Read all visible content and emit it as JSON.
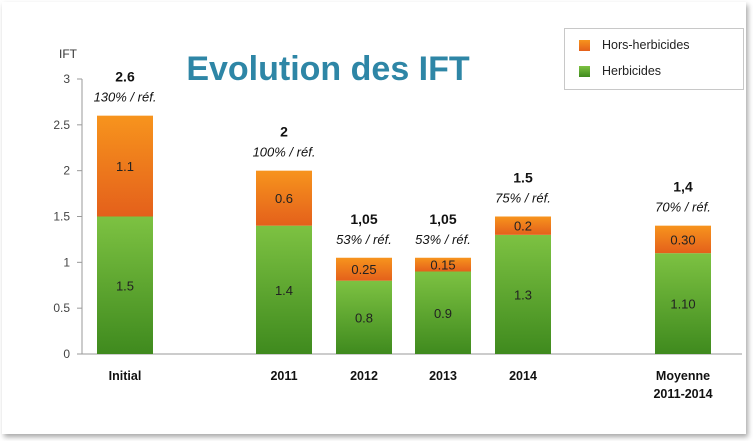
{
  "chart_data": {
    "type": "bar",
    "stacked": true,
    "title": "Evolution des IFT",
    "ylabel": "IFT",
    "ylim": [
      0,
      3
    ],
    "yticks": [
      "0",
      "0.5",
      "1",
      "1.5",
      "2",
      "2.5",
      "3"
    ],
    "grid": false,
    "legend_position": "top-right",
    "categories": [
      {
        "label": "Initial",
        "label2": ""
      },
      {
        "label": "2011",
        "label2": ""
      },
      {
        "label": "2012",
        "label2": ""
      },
      {
        "label": "2013",
        "label2": ""
      },
      {
        "label": "2014",
        "label2": ""
      },
      {
        "label": "Moyenne",
        "label2": "2011-2014"
      }
    ],
    "series": [
      {
        "name": "Herbicides",
        "color": "#7dc242",
        "color_dark": "#3f8a1e",
        "values": [
          1.5,
          1.4,
          0.8,
          0.9,
          1.3,
          1.1
        ],
        "value_labels": [
          "1.5",
          "1.4",
          "0.8",
          "0.9",
          "1.3",
          "1.10"
        ]
      },
      {
        "name": "Hors-herbicides",
        "color": "#f7941d",
        "color_dark": "#e4601b",
        "values": [
          1.1,
          0.6,
          0.25,
          0.15,
          0.2,
          0.3
        ],
        "value_labels": [
          "1.1",
          "0.6",
          "0.25",
          "0.15",
          "0.2",
          "0.30"
        ]
      }
    ],
    "totals": [
      "2.6",
      "2",
      "1,05",
      "1,05",
      "1.5",
      "1,4"
    ],
    "ratios": [
      "130% / réf.",
      "100% / réf.",
      "53% / réf.",
      "53% / réf.",
      "75% / réf.",
      "70% / réf."
    ],
    "title_color": "#2e86a6"
  }
}
